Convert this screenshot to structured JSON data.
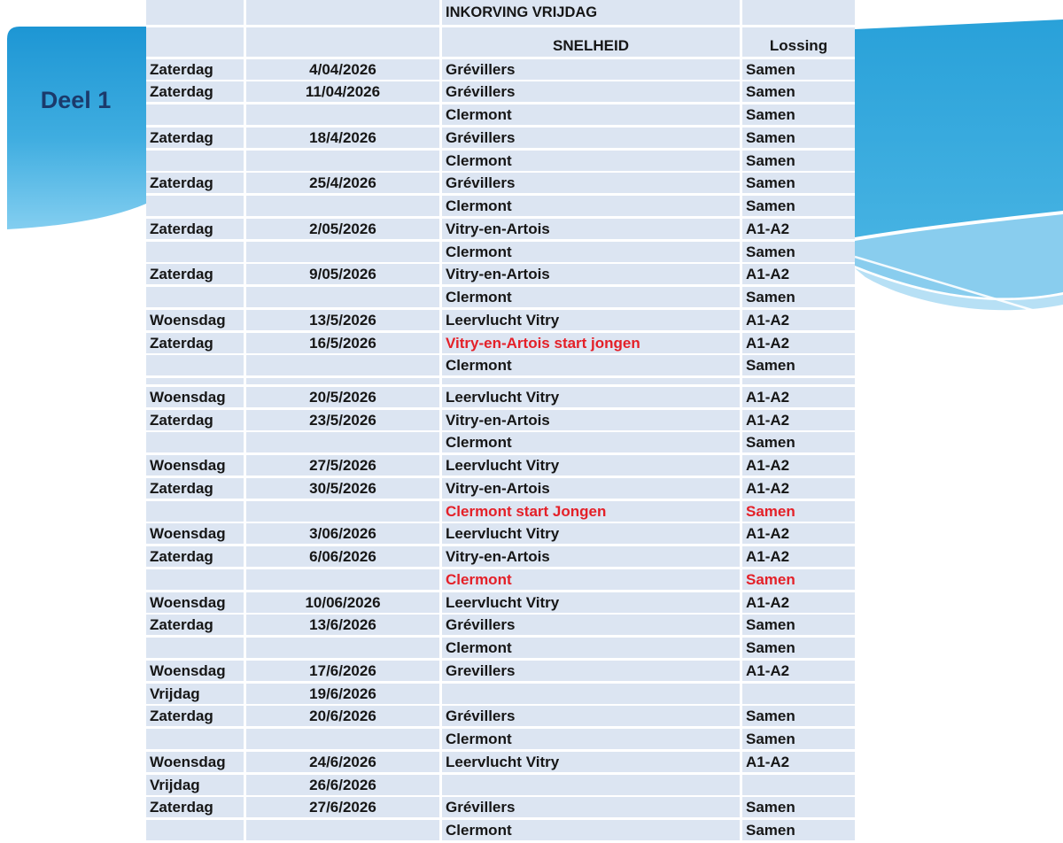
{
  "ribbon": {
    "label": "Deel 1"
  },
  "table": {
    "title": "INKORVING VRIJDAG",
    "headers": {
      "snelheid": "SNELHEID",
      "lossing": "Lossing"
    },
    "rows": [
      {
        "day": "Zaterdag",
        "date": "4/04/2026",
        "location": "Grévillers",
        "lossing": "Samen"
      },
      {
        "day": "Zaterdag",
        "date": "11/04/2026",
        "location": "Grévillers",
        "lossing": "Samen"
      },
      {
        "day": "",
        "date": "",
        "location": "Clermont",
        "lossing": "Samen"
      },
      {
        "day": "Zaterdag",
        "date": "18/4/2026",
        "location": "Grévillers",
        "lossing": "Samen"
      },
      {
        "day": "",
        "date": "",
        "location": "Clermont",
        "lossing": "Samen"
      },
      {
        "day": "Zaterdag",
        "date": "25/4/2026",
        "location": "Grévillers",
        "lossing": "Samen"
      },
      {
        "day": "",
        "date": "",
        "location": "Clermont",
        "lossing": "Samen"
      },
      {
        "day": "Zaterdag",
        "date": "2/05/2026",
        "location": "Vitry-en-Artois",
        "lossing": "A1-A2"
      },
      {
        "day": "",
        "date": "",
        "location": "Clermont",
        "lossing": "Samen"
      },
      {
        "day": "Zaterdag",
        "date": "9/05/2026",
        "location": "Vitry-en-Artois",
        "lossing": "A1-A2"
      },
      {
        "day": "",
        "date": "",
        "location": "Clermont",
        "lossing": "Samen"
      },
      {
        "day": "Woensdag",
        "date": "13/5/2026",
        "location": "Leervlucht Vitry",
        "lossing": "A1-A2"
      },
      {
        "day": "Zaterdag",
        "date": "16/5/2026",
        "location": "Vitry-en-Artois start jongen",
        "lossing": "A1-A2",
        "location_red": true
      },
      {
        "day": "",
        "date": "",
        "location": "Clermont",
        "lossing": "Samen"
      },
      {
        "spacer": true
      },
      {
        "day": "Woensdag",
        "date": "20/5/2026",
        "location": "Leervlucht Vitry",
        "lossing": "A1-A2"
      },
      {
        "day": "Zaterdag",
        "date": "23/5/2026",
        "location": "Vitry-en-Artois",
        "lossing": "A1-A2"
      },
      {
        "day": "",
        "date": "",
        "location": "Clermont",
        "lossing": "Samen"
      },
      {
        "day": "Woensdag",
        "date": "27/5/2026",
        "location": "Leervlucht Vitry",
        "lossing": "A1-A2"
      },
      {
        "day": "Zaterdag",
        "date": "30/5/2026",
        "location": "Vitry-en-Artois",
        "lossing": "A1-A2"
      },
      {
        "day": "",
        "date": "",
        "location": "Clermont start Jongen",
        "lossing": "Samen",
        "location_red": true,
        "lossing_red": true
      },
      {
        "day": "Woensdag",
        "date": "3/06/2026",
        "location": "Leervlucht Vitry",
        "lossing": "A1-A2"
      },
      {
        "day": "Zaterdag",
        "date": "6/06/2026",
        "location": "Vitry-en-Artois",
        "lossing": "A1-A2"
      },
      {
        "day": "",
        "date": "",
        "location": "Clermont",
        "lossing": "Samen",
        "location_red": true,
        "lossing_red": true
      },
      {
        "day": "Woensdag",
        "date": "10/06/2026",
        "location": "Leervlucht Vitry",
        "lossing": "A1-A2"
      },
      {
        "day": "Zaterdag",
        "date": "13/6/2026",
        "location": "Grévillers",
        "lossing": "Samen"
      },
      {
        "day": "",
        "date": "",
        "location": "Clermont",
        "lossing": "Samen"
      },
      {
        "day": "Woensdag",
        "date": "17/6/2026",
        "location": "Grevillers",
        "lossing": "A1-A2"
      },
      {
        "day": "Vrijdag",
        "date": "19/6/2026",
        "location": "",
        "lossing": ""
      },
      {
        "day": "Zaterdag",
        "date": "20/6/2026",
        "location": "Grévillers",
        "lossing": "Samen"
      },
      {
        "day": "",
        "date": "",
        "location": "Clermont",
        "lossing": "Samen"
      },
      {
        "day": "Woensdag",
        "date": "24/6/2026",
        "location": "Leervlucht Vitry",
        "lossing": "A1-A2"
      },
      {
        "day": "Vrijdag",
        "date": "26/6/2026",
        "location": "",
        "lossing": ""
      },
      {
        "day": "Zaterdag",
        "date": "27/6/2026",
        "location": "Grévillers",
        "lossing": "Samen"
      },
      {
        "day": "",
        "date": "",
        "location": "Clermont",
        "lossing": "Samen"
      }
    ]
  },
  "colors": {
    "row_bg": "#dce5f2",
    "text": "#161616",
    "red": "#e42028",
    "ribbon_text": "#1b3a6b",
    "blue_top": "#1d96d4",
    "blue_mid": "#45b1e2",
    "blue_light": "#7fcdf0"
  }
}
